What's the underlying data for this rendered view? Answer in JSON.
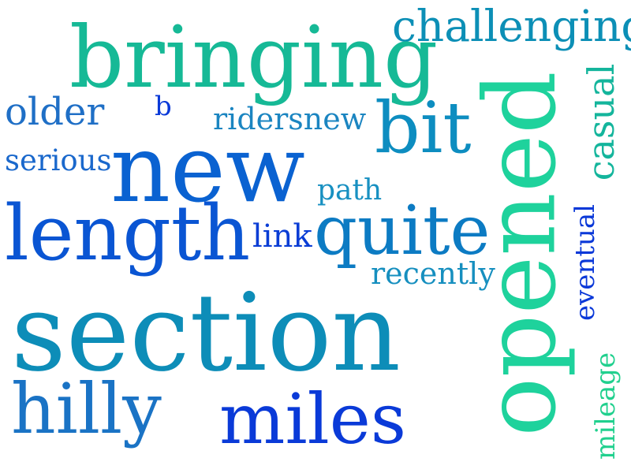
{
  "words": [
    {
      "text": "challenging",
      "color": "#0c8fb6"
    },
    {
      "text": "bringing",
      "color": "#16b996"
    },
    {
      "text": "older",
      "color": "#1f6fc6"
    },
    {
      "text": "b",
      "color": "#0a3ad8"
    },
    {
      "text": "ridersnew",
      "color": "#1b85c1"
    },
    {
      "text": "bit",
      "color": "#0d8dc0"
    },
    {
      "text": "opened",
      "color": "#1ed29c"
    },
    {
      "text": "casual",
      "color": "#14b59c"
    },
    {
      "text": "serious",
      "color": "#1a68cc"
    },
    {
      "text": "new",
      "color": "#0a62d1"
    },
    {
      "text": "path",
      "color": "#1890c1"
    },
    {
      "text": "length",
      "color": "#0a55d3"
    },
    {
      "text": "link",
      "color": "#0a3dd5"
    },
    {
      "text": "quite",
      "color": "#0c7bc3"
    },
    {
      "text": "eventual",
      "color": "#0a38d8"
    },
    {
      "text": "recently",
      "color": "#168fbf"
    },
    {
      "text": "section",
      "color": "#0d8db8"
    },
    {
      "text": "hilly",
      "color": "#1a73c5"
    },
    {
      "text": "miles",
      "color": "#0a3ad8"
    },
    {
      "text": "mileage",
      "color": "#21d08e"
    }
  ]
}
